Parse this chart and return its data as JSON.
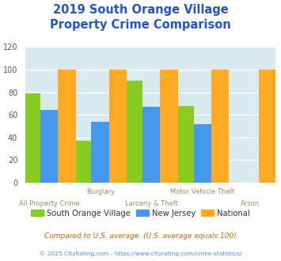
{
  "title": "2019 South Orange Village\nProperty Crime Comparison",
  "title_color": "#2255cc",
  "title_fontsize": 10.5,
  "series": {
    "South Orange Village": [
      79,
      37,
      90,
      68,
      0
    ],
    "New Jersey": [
      64,
      54,
      67,
      52,
      0
    ],
    "National": [
      100,
      100,
      100,
      100,
      100
    ]
  },
  "colors": {
    "South Orange Village": "#88cc22",
    "New Jersey": "#4499ee",
    "National": "#ffaa22"
  },
  "ylim": [
    0,
    120
  ],
  "yticks": [
    0,
    20,
    40,
    60,
    80,
    100,
    120
  ],
  "bar_width": 0.26,
  "group_positions": [
    0.4,
    1.15,
    1.9,
    2.65,
    3.35
  ],
  "plot_bg_color": "#d8eaf0",
  "fig_bg_color": "#ffffff",
  "grid_color": "#ffffff",
  "xtick_top": [
    "",
    "Burglary",
    "",
    "Motor Vehicle Theft",
    ""
  ],
  "xtick_bottom": [
    "All Property Crime",
    "",
    "Larceny & Theft",
    "",
    "Arson"
  ],
  "xtick_color": "#aa8866",
  "footnote1": "Compared to U.S. average. (U.S. average equals 100)",
  "footnote2": "© 2025 CityRating.com - https://www.cityrating.com/crime-statistics/",
  "footnote1_color": "#cc6600",
  "footnote2_color": "#5588cc"
}
